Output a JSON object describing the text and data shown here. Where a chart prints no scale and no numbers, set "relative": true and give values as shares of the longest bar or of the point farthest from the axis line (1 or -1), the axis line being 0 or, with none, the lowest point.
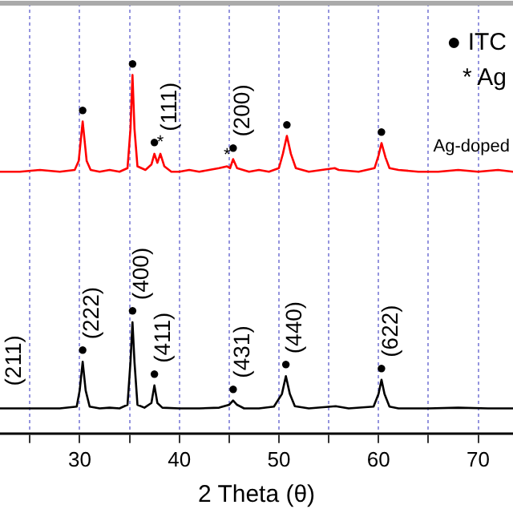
{
  "chart_data": {
    "type": "line",
    "xlabel": "2 Theta (θ)",
    "relative": true,
    "grid": "x",
    "legend": false,
    "marker": "none",
    "line_style": "solid",
    "xlim": [
      22,
      73.5
    ],
    "xticks": [
      {
        "value": 25,
        "label": null
      },
      30,
      {
        "value": 35,
        "label": null
      },
      40,
      {
        "value": 45,
        "label": null
      },
      50,
      {
        "value": 55,
        "label": null
      },
      60,
      {
        "value": 65,
        "label": null
      },
      70
    ],
    "series": [
      {
        "name": "Ag-doped",
        "color": "#ff0000",
        "x": [
          22,
          24,
          26,
          28,
          29.5,
          29.9,
          30.3,
          30.7,
          31.1,
          32,
          33,
          34,
          34.8,
          35.1,
          35.3,
          35.5,
          35.8,
          36.6,
          37.2,
          37.5,
          37.8,
          38.1,
          38.5,
          39.2,
          40,
          41,
          42,
          43,
          44,
          44.8,
          45.1,
          45.4,
          45.8,
          47,
          48,
          49,
          50,
          50.4,
          50.8,
          51.2,
          51.7,
          53,
          55.6,
          56,
          58,
          59.6,
          60,
          60.3,
          60.7,
          61.1,
          62,
          64,
          66,
          68,
          70,
          72,
          73.5
        ],
        "values": [
          0.73,
          0.73,
          0.735,
          0.73,
          0.735,
          0.76,
          0.87,
          0.76,
          0.735,
          0.73,
          0.735,
          0.73,
          0.74,
          0.85,
          1.0,
          0.85,
          0.745,
          0.735,
          0.75,
          0.78,
          0.755,
          0.78,
          0.745,
          0.73,
          0.73,
          0.735,
          0.73,
          0.735,
          0.74,
          0.745,
          0.74,
          0.765,
          0.74,
          0.73,
          0.735,
          0.73,
          0.74,
          0.78,
          0.83,
          0.78,
          0.74,
          0.73,
          0.74,
          0.735,
          0.73,
          0.74,
          0.775,
          0.81,
          0.77,
          0.74,
          0.735,
          0.73,
          0.73,
          0.735,
          0.73,
          0.735,
          0.73
        ]
      },
      {
        "color": "#000000",
        "x": [
          22,
          25,
          28,
          29.7,
          30,
          30.3,
          30.6,
          31,
          32,
          33,
          34,
          34.8,
          35.1,
          35.3,
          35.5,
          35.8,
          36.5,
          37.2,
          37.5,
          37.8,
          38.3,
          40,
          42,
          44,
          45,
          45.4,
          45.8,
          46.5,
          48,
          49.5,
          50.3,
          50.7,
          51.1,
          51.6,
          53,
          55.7,
          57,
          59.5,
          60,
          60.3,
          60.6,
          61.1,
          62,
          65,
          68,
          71,
          73.5
        ],
        "values": [
          0.07,
          0.07,
          0.07,
          0.075,
          0.12,
          0.2,
          0.12,
          0.075,
          0.07,
          0.072,
          0.07,
          0.08,
          0.2,
          0.31,
          0.2,
          0.08,
          0.072,
          0.085,
          0.134,
          0.085,
          0.072,
          0.07,
          0.07,
          0.072,
          0.08,
          0.092,
          0.08,
          0.07,
          0.07,
          0.075,
          0.11,
          0.16,
          0.11,
          0.076,
          0.07,
          0.076,
          0.07,
          0.075,
          0.11,
          0.15,
          0.11,
          0.075,
          0.07,
          0.07,
          0.072,
          0.07,
          0.07
        ]
      }
    ],
    "annotations": [
      "● ITC",
      "* Ag",
      {
        "text": "(111)",
        "x": 38.1,
        "y": 0.78
      },
      {
        "text": "(200)",
        "x": 45.4,
        "y": 0.765
      },
      {
        "text": "(211)",
        "x": 22,
        "y": 0.07
      },
      {
        "text": "(222)",
        "x": 30.3,
        "y": 0.2
      },
      {
        "text": "(400)",
        "x": 35.3,
        "y": 0.31
      },
      {
        "text": "(411)",
        "x": 37.5,
        "y": 0.134
      },
      {
        "text": "(431)",
        "x": 45.4,
        "y": 0.092
      },
      {
        "text": "(440)",
        "x": 50.7,
        "y": 0.16
      },
      {
        "text": "(622)",
        "x": 60.3,
        "y": 0.15
      },
      {
        "text": "●",
        "x": 30.3,
        "y": 0.87
      },
      {
        "text": "●",
        "x": 35.3,
        "y": 1.0
      },
      {
        "text": "●",
        "x": 37.5,
        "y": 0.78
      },
      {
        "text": "*",
        "x": 38.1,
        "y": 0.78
      },
      {
        "text": "*",
        "x": 44.8,
        "y": 0.745
      },
      {
        "text": "●",
        "x": 45.4,
        "y": 0.765
      },
      {
        "text": "●",
        "x": 50.8,
        "y": 0.83
      },
      {
        "text": "●",
        "x": 60.3,
        "y": 0.81
      },
      {
        "text": "●",
        "x": 30.3,
        "y": 0.2
      },
      {
        "text": "●",
        "x": 35.3,
        "y": 0.31
      },
      {
        "text": "●",
        "x": 37.5,
        "y": 0.134
      },
      {
        "text": "●",
        "x": 45.4,
        "y": 0.092
      },
      {
        "text": "●",
        "x": 50.7,
        "y": 0.16
      },
      {
        "text": "●",
        "x": 60.3,
        "y": 0.15
      }
    ]
  }
}
